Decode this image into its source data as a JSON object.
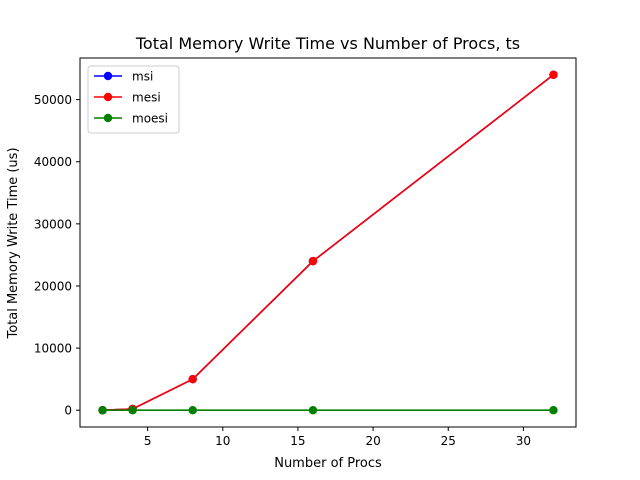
{
  "chart_data": {
    "type": "line",
    "title": "Total Memory Write Time vs Number of Procs, ts",
    "xlabel": "Number of Procs",
    "ylabel": "Total Memory Write Time (us)",
    "xlim": [
      0.5,
      33.5
    ],
    "ylim": [
      -2700,
      56700
    ],
    "xticks": [
      5,
      10,
      15,
      20,
      25,
      30
    ],
    "yticks": [
      0,
      10000,
      20000,
      30000,
      40000,
      50000
    ],
    "grid": false,
    "legend_position": "upper-left",
    "x": [
      2,
      4,
      8,
      16,
      32
    ],
    "series": [
      {
        "name": "msi",
        "color": "#0000ff",
        "values": [
          0,
          200,
          5000,
          24000,
          54000
        ]
      },
      {
        "name": "mesi",
        "color": "#ff0000",
        "values": [
          0,
          200,
          5000,
          24000,
          54000
        ]
      },
      {
        "name": "moesi",
        "color": "#008000",
        "values": [
          0,
          0,
          0,
          0,
          0
        ]
      }
    ]
  }
}
